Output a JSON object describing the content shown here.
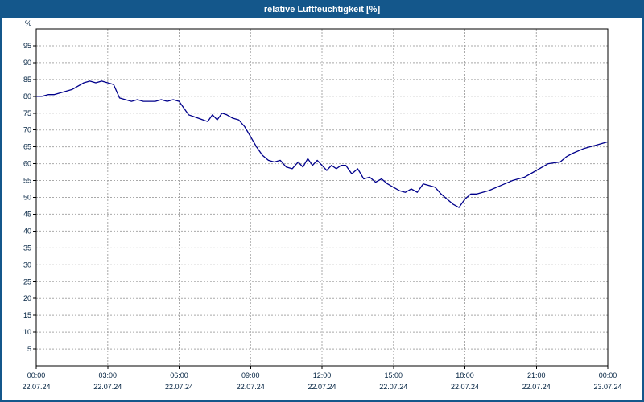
{
  "window": {
    "title": "relative Luftfeuchtigkeit [%]"
  },
  "colors": {
    "titlebar": "#14578b",
    "line": "#00008b",
    "grid": "#a9a9a9",
    "axis": "#000000",
    "label": "#002140",
    "background": "#ffffff"
  },
  "chart_data": {
    "type": "line",
    "title": "relative Luftfeuchtigkeit [%]",
    "xlabel": "",
    "ylabel": "%",
    "ylim": [
      0,
      100
    ],
    "ytick_step": 5,
    "ytick_min": 5,
    "ytick_max": 95,
    "x_hours_range": [
      0,
      24
    ],
    "grid": true,
    "legend": "none",
    "xticks": [
      {
        "time": "00:00",
        "date": "22.07.24"
      },
      {
        "time": "03:00",
        "date": "22.07.24"
      },
      {
        "time": "06:00",
        "date": "22.07.24"
      },
      {
        "time": "09:00",
        "date": "22.07.24"
      },
      {
        "time": "12:00",
        "date": "22.07.24"
      },
      {
        "time": "15:00",
        "date": "22.07.24"
      },
      {
        "time": "18:00",
        "date": "22.07.24"
      },
      {
        "time": "21:00",
        "date": "22.07.24"
      },
      {
        "time": "00:00",
        "date": "23.07.24"
      }
    ],
    "series": [
      {
        "name": "relative Luftfeuchtigkeit",
        "color": "#00008b",
        "x": [
          0,
          0.25,
          0.5,
          0.75,
          1,
          1.25,
          1.5,
          1.75,
          2,
          2.25,
          2.5,
          2.75,
          3,
          3.25,
          3.5,
          3.75,
          4,
          4.25,
          4.5,
          4.75,
          5,
          5.25,
          5.5,
          5.75,
          6,
          6.2,
          6.4,
          6.6,
          6.8,
          7,
          7.2,
          7.4,
          7.6,
          7.8,
          8,
          8.25,
          8.5,
          8.75,
          9,
          9.25,
          9.5,
          9.75,
          10,
          10.25,
          10.5,
          10.75,
          11,
          11.2,
          11.4,
          11.6,
          11.8,
          12,
          12.2,
          12.4,
          12.6,
          12.8,
          13,
          13.25,
          13.5,
          13.75,
          14,
          14.25,
          14.5,
          14.75,
          15,
          15.25,
          15.5,
          15.75,
          16,
          16.25,
          16.5,
          16.75,
          17,
          17.25,
          17.5,
          17.75,
          18,
          18.25,
          18.5,
          19,
          19.5,
          20,
          20.5,
          21,
          21.25,
          21.5,
          22,
          22.25,
          22.5,
          23,
          23.25,
          23.5,
          23.75,
          24
        ],
        "y": [
          80,
          80,
          80.5,
          80.5,
          81,
          81.5,
          82,
          83,
          84,
          84.5,
          84,
          84.5,
          84,
          83.5,
          79.5,
          79,
          78.5,
          79,
          78.5,
          78.5,
          78.5,
          79,
          78.5,
          79,
          78.5,
          76.5,
          74.5,
          74,
          73.5,
          73,
          72.5,
          74.5,
          73,
          75,
          74.5,
          73.5,
          73,
          71,
          68,
          65,
          62.5,
          61,
          60.5,
          61,
          59,
          58.5,
          60.5,
          59,
          61.5,
          59.5,
          61,
          59.5,
          58,
          59.5,
          58.5,
          59.5,
          59.5,
          57,
          58.5,
          55.5,
          56,
          54.5,
          55.5,
          54,
          53,
          52,
          51.5,
          52.5,
          51.5,
          54,
          53.5,
          53,
          51,
          49.5,
          48,
          47,
          49.5,
          51,
          51,
          52,
          53.5,
          55,
          56,
          58,
          59,
          60,
          60.5,
          62,
          63,
          64.5,
          65,
          65.5,
          66,
          66.5
        ]
      }
    ]
  }
}
